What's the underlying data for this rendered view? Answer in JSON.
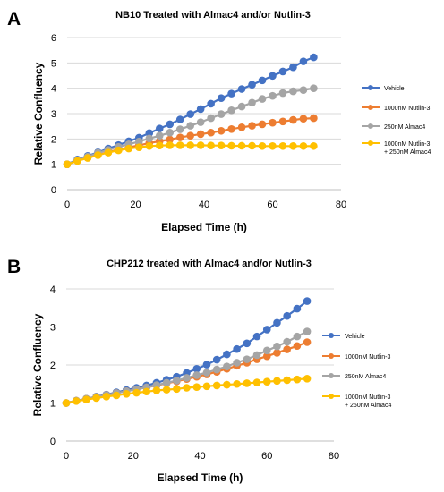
{
  "chart_data": [
    {
      "panel": "A",
      "type": "line",
      "title": "NB10 Treated with Almac4 and/or Nutlin-3",
      "xlabel": "Elapsed Time (h)",
      "ylabel": "Relative Confluency",
      "xlim": [
        0,
        80
      ],
      "ylim": [
        0,
        6
      ],
      "xticks": [
        0,
        20,
        40,
        60,
        80
      ],
      "yticks": [
        0,
        1,
        2,
        3,
        4,
        5,
        6
      ],
      "grid": "horizontal",
      "legend_position": "right",
      "x": [
        0,
        3,
        6,
        9,
        12,
        15,
        18,
        21,
        24,
        27,
        30,
        33,
        36,
        39,
        42,
        45,
        48,
        51,
        54,
        57,
        60,
        63,
        66,
        69,
        72
      ],
      "series": [
        {
          "name": "Vehicle",
          "color": "#4472C4",
          "values": [
            1.0,
            1.19,
            1.33,
            1.47,
            1.62,
            1.76,
            1.91,
            2.05,
            2.23,
            2.41,
            2.58,
            2.77,
            2.98,
            3.18,
            3.39,
            3.61,
            3.79,
            3.97,
            4.14,
            4.31,
            4.49,
            4.66,
            4.83,
            5.06,
            5.22
          ]
        },
        {
          "name": "1000nM Nutlin-3",
          "color": "#ED7D31",
          "values": [
            1.0,
            1.14,
            1.26,
            1.37,
            1.48,
            1.58,
            1.67,
            1.75,
            1.84,
            1.91,
            1.98,
            2.06,
            2.13,
            2.19,
            2.25,
            2.32,
            2.39,
            2.46,
            2.52,
            2.58,
            2.64,
            2.69,
            2.75,
            2.8,
            2.82
          ]
        },
        {
          "name": "250nM Almac4",
          "color": "#A5A5A5",
          "values": [
            1.0,
            1.16,
            1.3,
            1.45,
            1.57,
            1.69,
            1.79,
            1.9,
            2.02,
            2.13,
            2.25,
            2.38,
            2.52,
            2.66,
            2.82,
            2.98,
            3.13,
            3.28,
            3.43,
            3.58,
            3.7,
            3.81,
            3.88,
            3.93,
            4.0
          ]
        },
        {
          "name": "1000nM Nutlin-3\n+ 250nM Almac4",
          "color": "#FFC000",
          "values": [
            1.0,
            1.13,
            1.25,
            1.36,
            1.46,
            1.55,
            1.62,
            1.67,
            1.72,
            1.74,
            1.75,
            1.75,
            1.75,
            1.75,
            1.74,
            1.74,
            1.73,
            1.73,
            1.73,
            1.72,
            1.72,
            1.72,
            1.72,
            1.72,
            1.72
          ]
        }
      ]
    },
    {
      "panel": "B",
      "type": "line",
      "title": "CHP212 treated with Almac4 and/or Nutlin-3",
      "xlabel": "Elapsed Time (h)",
      "ylabel": "Relative Confluency",
      "xlim": [
        0,
        80
      ],
      "ylim": [
        0,
        4
      ],
      "xticks": [
        0,
        20,
        40,
        60,
        80
      ],
      "yticks": [
        0,
        1,
        2,
        3,
        4
      ],
      "grid": "horizontal",
      "legend_position": "right",
      "x": [
        0,
        3,
        6,
        9,
        12,
        15,
        18,
        21,
        24,
        27,
        30,
        33,
        36,
        39,
        42,
        45,
        48,
        51,
        54,
        57,
        60,
        63,
        66,
        69,
        72
      ],
      "series": [
        {
          "name": "Vehicle",
          "color": "#4472C4",
          "values": [
            1.0,
            1.06,
            1.11,
            1.17,
            1.22,
            1.28,
            1.34,
            1.4,
            1.46,
            1.53,
            1.61,
            1.69,
            1.79,
            1.9,
            2.01,
            2.14,
            2.28,
            2.42,
            2.57,
            2.75,
            2.93,
            3.11,
            3.29,
            3.48,
            3.68
          ]
        },
        {
          "name": "1000nM Nutlin-3",
          "color": "#ED7D31",
          "values": [
            1.0,
            1.06,
            1.11,
            1.16,
            1.21,
            1.26,
            1.31,
            1.36,
            1.41,
            1.46,
            1.52,
            1.57,
            1.63,
            1.69,
            1.75,
            1.82,
            1.9,
            1.98,
            2.06,
            2.15,
            2.23,
            2.32,
            2.41,
            2.5,
            2.6
          ]
        },
        {
          "name": "250nM Almac4",
          "color": "#A5A5A5",
          "values": [
            1.0,
            1.06,
            1.11,
            1.16,
            1.21,
            1.26,
            1.31,
            1.36,
            1.41,
            1.47,
            1.53,
            1.59,
            1.66,
            1.73,
            1.8,
            1.88,
            1.96,
            2.06,
            2.15,
            2.26,
            2.38,
            2.49,
            2.61,
            2.75,
            2.88
          ]
        },
        {
          "name": "1000nM Nutlin-3\n+ 250nM Almac4",
          "color": "#FFC000",
          "values": [
            1.0,
            1.05,
            1.09,
            1.13,
            1.17,
            1.2,
            1.24,
            1.27,
            1.3,
            1.33,
            1.35,
            1.37,
            1.4,
            1.42,
            1.44,
            1.46,
            1.48,
            1.5,
            1.52,
            1.54,
            1.56,
            1.58,
            1.6,
            1.62,
            1.64
          ]
        }
      ]
    }
  ]
}
